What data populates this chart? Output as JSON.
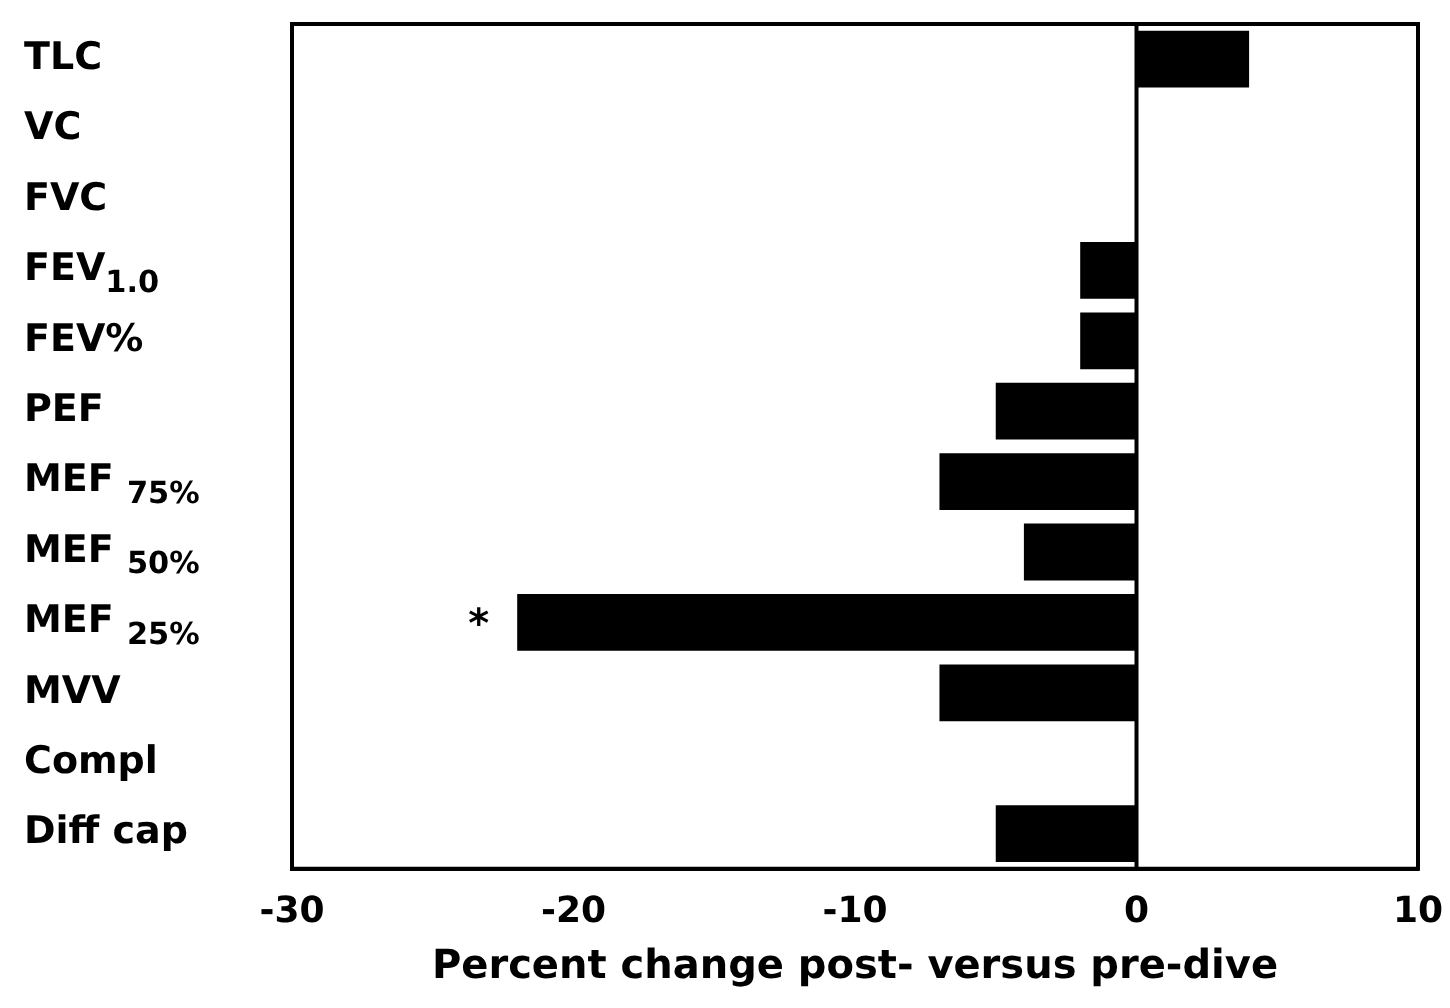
{
  "chart_data": {
    "type": "bar",
    "orientation": "horizontal",
    "xlabel": "Percent change post- versus pre-dive",
    "categories": [
      "TLC",
      "VC",
      "FVC",
      "FEV$_{1.0}$",
      "FEV%",
      "PEF",
      "MEF $_{75%}$",
      "MEF $_{50%}$",
      "MEF $_{25%}$",
      "MVV",
      "Compl",
      "Diff cap"
    ],
    "values": [
      4,
      0,
      0,
      -2,
      -2,
      -5,
      -7,
      -4,
      -22,
      -7,
      0,
      -5
    ],
    "color": "#000000",
    "xlim": [
      -30,
      10
    ],
    "xticks": [
      -30,
      -20,
      -10,
      0,
      10
    ],
    "ref_lines": [
      {
        "axis": "x",
        "value": 0,
        "color": "#000000"
      }
    ],
    "annotations": [
      "*"
    ],
    "grid": false,
    "legend": false
  }
}
